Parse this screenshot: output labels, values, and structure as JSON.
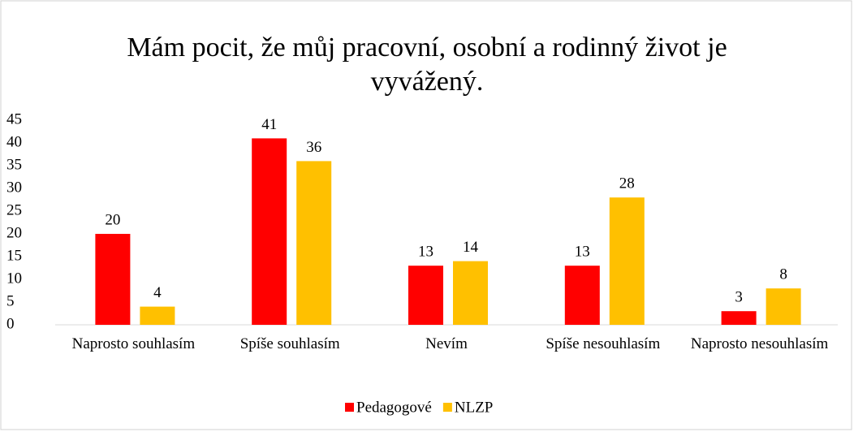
{
  "chart_data": {
    "type": "bar",
    "title": "Mám pocit, že můj pracovní, osobní a rodinný život je vyvážený.",
    "categories": [
      "Naprosto souhlasím",
      "Spíše souhlasím",
      "Nevím",
      "Spíše nesouhlasím",
      "Naprosto nesouhlasím"
    ],
    "series": [
      {
        "name": "Pedagogové",
        "color": "#ff0000",
        "values": [
          20,
          41,
          13,
          13,
          3
        ]
      },
      {
        "name": "NLZP",
        "color": "#ffc000",
        "values": [
          4,
          36,
          14,
          28,
          8
        ]
      }
    ],
    "ylim": [
      0,
      45
    ],
    "yticks": [
      0,
      5,
      10,
      15,
      20,
      25,
      30,
      35,
      40,
      45
    ],
    "grid": false,
    "legend": "bottom"
  }
}
